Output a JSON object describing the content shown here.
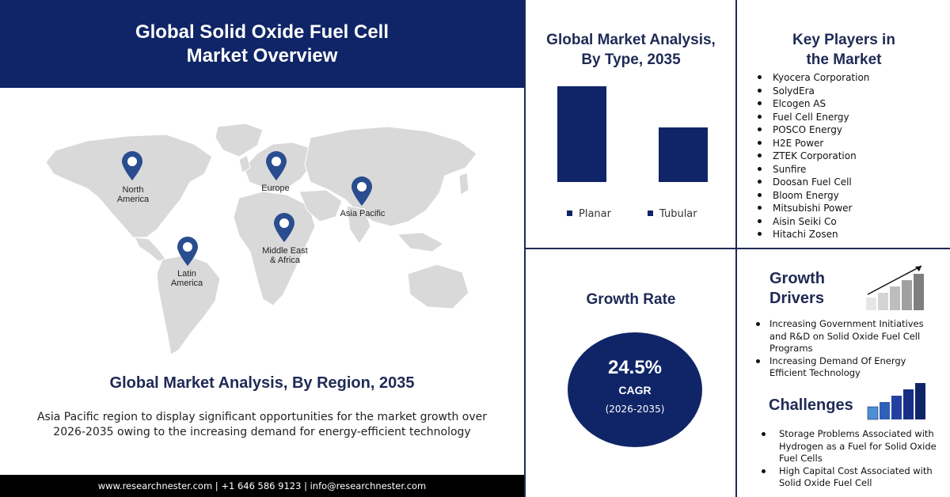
{
  "header": {
    "title_line1": "Global Solid Oxide Fuel Cell",
    "title_line2": "Market Overview"
  },
  "map": {
    "regions": [
      {
        "name": "north-america",
        "label_line1": "North",
        "label_line2": "America"
      },
      {
        "name": "europe",
        "label_line1": "Europe",
        "label_line2": ""
      },
      {
        "name": "asia-pacific",
        "label_line1": "Asia Pacific",
        "label_line2": ""
      },
      {
        "name": "middle-east-africa",
        "label_line1": "Middle East",
        "label_line2": "& Africa"
      },
      {
        "name": "latin-america",
        "label_line1": "Latin",
        "label_line2": "America"
      }
    ],
    "pin_color": "#2a4d8f",
    "land_color": "#d9d9d9"
  },
  "region_analysis": {
    "title": "Global Market Analysis, By Region, 2035",
    "description": "Asia Pacific region to display significant opportunities for the market growth over 2026-2035  owing to the increasing demand for energy-efficient technology"
  },
  "footer": {
    "text": "www.researchnester.com  | +1 646 586 9123 | info@researchnester.com"
  },
  "type_analysis": {
    "title_line1": "Global Market Analysis,",
    "title_line2": "By Type, 2035"
  },
  "chart_data": {
    "type": "bar",
    "categories": [
      "Planar",
      "Tubular"
    ],
    "values": [
      100,
      57
    ],
    "title": "Global Market Analysis, By Type, 2035",
    "ylim": [
      0,
      100
    ],
    "grid": false,
    "legend": "bottom",
    "color": "#0f2567"
  },
  "key_players": {
    "title_line1": "Key Players in",
    "title_line2": "the Market",
    "items": [
      "Kyocera Corporation",
      "SolydEra",
      "Elcogen AS",
      "Fuel Cell Energy",
      "POSCO Energy",
      "H2E Power",
      "ZTEK Corporation",
      "Sunfire",
      "Doosan Fuel Cell",
      "Bloom Energy",
      "Mitsubishi Power",
      "Aisin Seiki Co",
      "Hitachi Zosen"
    ]
  },
  "growth_rate": {
    "title": "Growth Rate",
    "value": "24.5%",
    "label": "CAGR",
    "period": "(2026-2035)"
  },
  "drivers": {
    "title_line1": "Growth",
    "title_line2": "Drivers",
    "items": [
      "Increasing Government Initiatives and R&D on Solid Oxide Fuel Cell Programs",
      "Increasing Demand Of Energy Efficient Technology"
    ]
  },
  "challenges": {
    "title": "Challenges",
    "items": [
      "Storage Problems Associated with Hydrogen as a Fuel for Solid Oxide Fuel Cells",
      "High Capital Cost Associated with Solid Oxide Fuel Cell"
    ]
  },
  "colors": {
    "navy": "#0f2567",
    "dark_text": "#1f2a55"
  }
}
